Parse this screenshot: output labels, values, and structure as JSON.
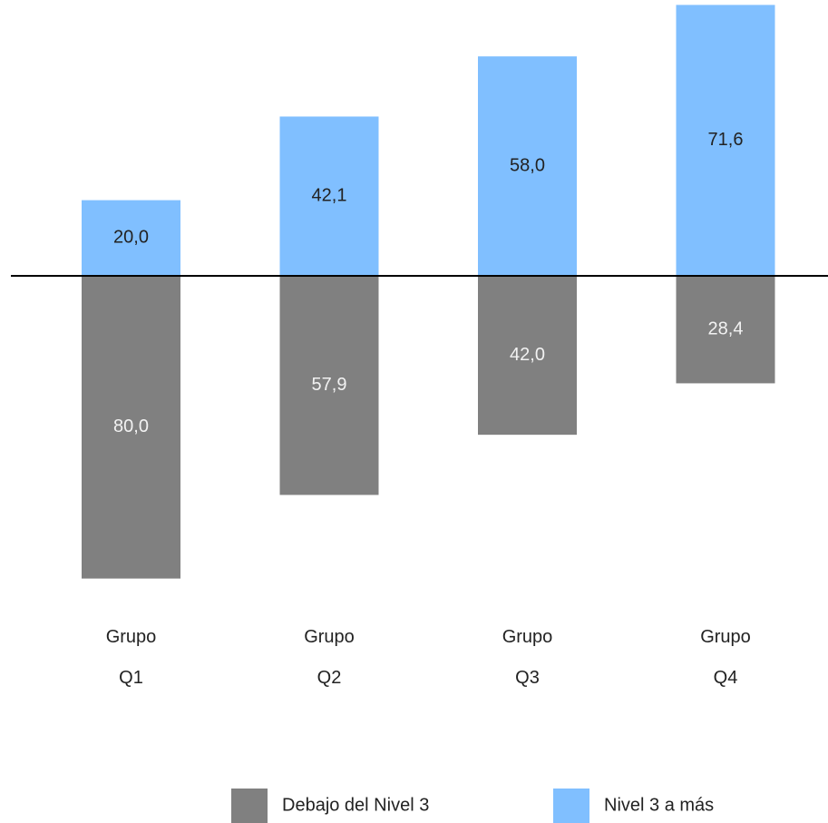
{
  "chart_data": {
    "type": "diverging-bar",
    "categories": [
      "Grupo Q1",
      "Grupo Q2",
      "Grupo Q3",
      "Grupo Q4"
    ],
    "series": [
      {
        "name": "Debajo del Nivel 3",
        "color": "#808080",
        "values": [
          80.0,
          57.9,
          42.0,
          28.4
        ],
        "value_labels": [
          "80,0",
          "57,9",
          "42,0",
          "28,4"
        ]
      },
      {
        "name": "Nivel 3 a más",
        "color": "#80bfff",
        "values": [
          20.0,
          42.1,
          58.0,
          71.6
        ],
        "value_labels": [
          "20,0",
          "42,1",
          "58,0",
          "71,6"
        ]
      }
    ]
  }
}
